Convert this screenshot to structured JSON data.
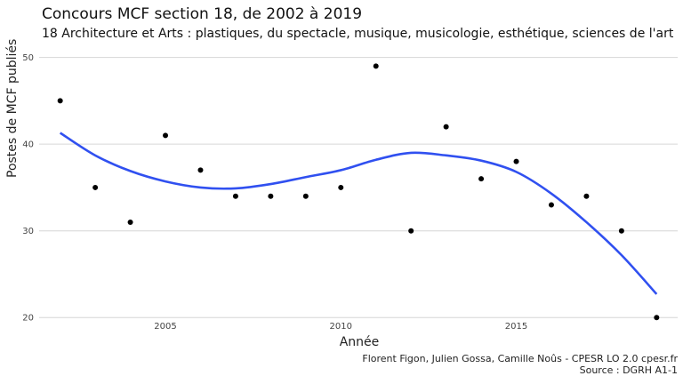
{
  "chart_data": {
    "type": "scatter",
    "title": "Concours MCF section 18, de 2002 à 2019",
    "subtitle": "18 Architecture et Arts : plastiques, du spectacle, musique, musicologie, esthétique, sciences de l'art",
    "xlabel": "Année",
    "ylabel": "Postes de MCF publiés",
    "caption_line1": "Florent Figon, Julien Gossa, Camille Noûs - CPESR LO 2.0 cpesr.fr",
    "caption_line2": "Source : DGRH A1-1",
    "x_ticks": [
      2005,
      2010,
      2015
    ],
    "y_ticks": [
      20,
      30,
      40,
      50
    ],
    "xlim": [
      2001.4,
      2019.6
    ],
    "ylim": [
      19,
      51.5
    ],
    "grid": "horizontal",
    "points": [
      {
        "x": 2002,
        "y": 45
      },
      {
        "x": 2003,
        "y": 35
      },
      {
        "x": 2004,
        "y": 31
      },
      {
        "x": 2005,
        "y": 41
      },
      {
        "x": 2006,
        "y": 37
      },
      {
        "x": 2007,
        "y": 34
      },
      {
        "x": 2008,
        "y": 34
      },
      {
        "x": 2009,
        "y": 34
      },
      {
        "x": 2010,
        "y": 35
      },
      {
        "x": 2011,
        "y": 49
      },
      {
        "x": 2012,
        "y": 30
      },
      {
        "x": 2013,
        "y": 42
      },
      {
        "x": 2014,
        "y": 36
      },
      {
        "x": 2015,
        "y": 38
      },
      {
        "x": 2016,
        "y": 33
      },
      {
        "x": 2017,
        "y": 34
      },
      {
        "x": 2018,
        "y": 30
      },
      {
        "x": 2019,
        "y": 20
      }
    ],
    "smooth": [
      {
        "x": 2002,
        "y": 41.3
      },
      {
        "x": 2003,
        "y": 38.7
      },
      {
        "x": 2004,
        "y": 36.9
      },
      {
        "x": 2005,
        "y": 35.7
      },
      {
        "x": 2006,
        "y": 35.0
      },
      {
        "x": 2007,
        "y": 34.9
      },
      {
        "x": 2008,
        "y": 35.4
      },
      {
        "x": 2009,
        "y": 36.2
      },
      {
        "x": 2010,
        "y": 37.0
      },
      {
        "x": 2011,
        "y": 38.2
      },
      {
        "x": 2012,
        "y": 39.0
      },
      {
        "x": 2013,
        "y": 38.7
      },
      {
        "x": 2014,
        "y": 38.1
      },
      {
        "x": 2015,
        "y": 36.8
      },
      {
        "x": 2016,
        "y": 34.3
      },
      {
        "x": 2017,
        "y": 31.0
      },
      {
        "x": 2018,
        "y": 27.2
      },
      {
        "x": 2019,
        "y": 22.7
      }
    ],
    "colors": {
      "points": "#000000",
      "smooth": "#3050f0",
      "grid": "#d6d6d6"
    }
  }
}
